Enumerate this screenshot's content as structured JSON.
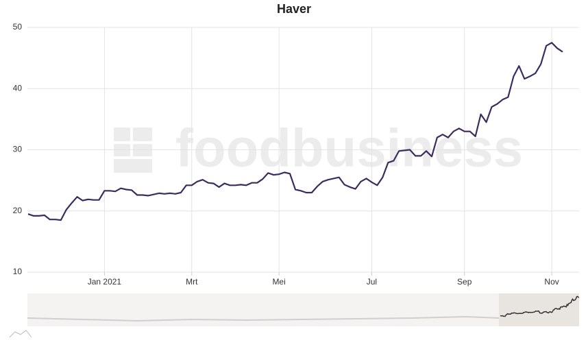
{
  "chart_data": {
    "type": "line",
    "title": "Haver",
    "watermark": "foodbusiness",
    "categories": [
      null,
      null,
      null,
      null,
      null,
      null,
      null,
      null,
      null,
      null,
      null,
      null,
      null,
      null,
      "Jan 2021",
      null,
      null,
      null,
      null,
      null,
      null,
      null,
      null,
      null,
      null,
      null,
      null,
      null,
      null,
      null,
      "Mrt",
      null,
      null,
      null,
      null,
      null,
      null,
      null,
      null,
      null,
      null,
      null,
      null,
      null,
      null,
      null,
      "Mei",
      null,
      null,
      null,
      null,
      null,
      null,
      null,
      null,
      null,
      null,
      null,
      null,
      null,
      null,
      null,
      null,
      "Jul",
      null,
      null,
      null,
      null,
      null,
      null,
      null,
      null,
      null,
      null,
      null,
      null,
      null,
      null,
      null,
      null,
      "Sep",
      null,
      null,
      null,
      null,
      null,
      null,
      null,
      null,
      null,
      null,
      null,
      null,
      null,
      null,
      null,
      "Nov",
      null,
      null
    ],
    "series": [
      {
        "color": "#3b2b5f",
        "values": [
          19.5,
          19.2,
          19.2,
          19.3,
          18.6,
          18.6,
          18.5,
          20.2,
          21.3,
          22.3,
          21.7,
          21.9,
          21.8,
          21.8,
          23.3,
          23.3,
          23.2,
          23.7,
          23.5,
          23.4,
          22.6,
          22.6,
          22.5,
          22.7,
          22.9,
          22.8,
          22.9,
          22.8,
          23.0,
          24.2,
          24.2,
          24.8,
          25.1,
          24.6,
          24.5,
          23.9,
          24.5,
          24.2,
          24.2,
          24.3,
          24.2,
          24.6,
          24.6,
          25.2,
          26.2,
          25.9,
          26.0,
          26.3,
          26.1,
          23.5,
          23.3,
          23.0,
          23.0,
          24.0,
          24.8,
          25.1,
          25.3,
          25.5,
          24.3,
          23.9,
          23.6,
          24.8,
          25.3,
          24.7,
          24.2,
          25.5,
          27.9,
          28.2,
          29.8,
          29.9,
          30.0,
          29.0,
          29.0,
          29.8,
          28.9,
          32.0,
          32.5,
          32.0,
          33.0,
          33.5,
          33.0,
          33.0,
          32.2,
          35.8,
          34.5,
          37.0,
          37.5,
          38.2,
          38.6,
          42.0,
          43.7,
          41.6,
          42.0,
          42.5,
          44.0,
          47.0,
          47.5,
          46.6,
          46.0
        ]
      }
    ],
    "ylim": [
      10,
      50
    ],
    "yticks": [
      10,
      20,
      30,
      40,
      50
    ],
    "grid": true
  }
}
